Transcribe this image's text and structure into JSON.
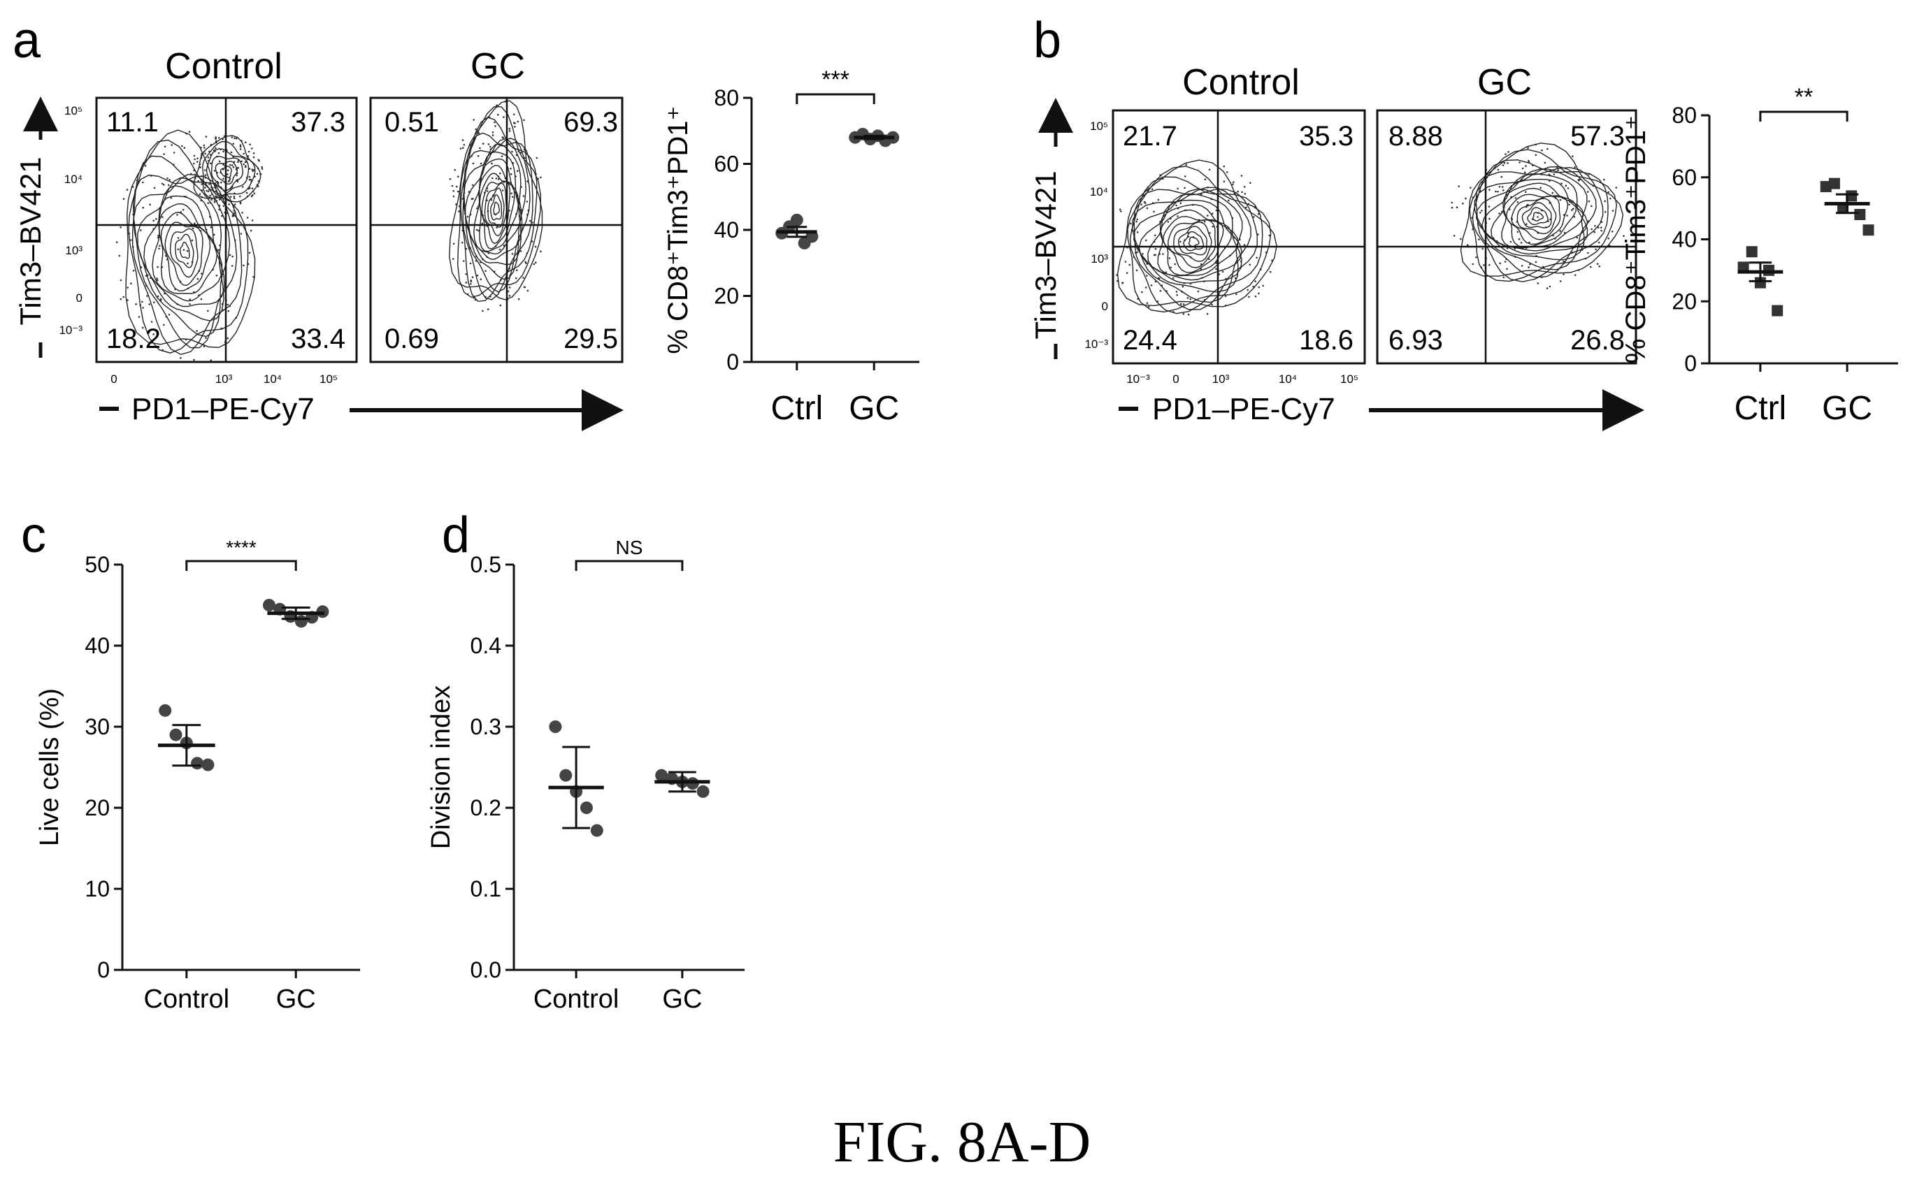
{
  "figure": {
    "caption": "FIG. 8A-D"
  },
  "panels": {
    "a": {
      "letter": "a",
      "flow": {
        "ylabel": "Tim3–BV421",
        "xlabel": "PD1–PE-Cy7",
        "plots": [
          {
            "title": "Control",
            "quadrants": {
              "ul": "11.1",
              "ur": "37.3",
              "ll": "18.2",
              "lr": "33.4"
            }
          },
          {
            "title": "GC",
            "quadrants": {
              "ul": "0.51",
              "ur": "69.3",
              "ll": "0.69",
              "lr": "29.5"
            }
          }
        ],
        "y_ticks": [
          "10⁵",
          "10⁴",
          "10³",
          "0",
          "10⁻³"
        ],
        "x_ticks": [
          "0",
          "10³",
          "10⁴",
          "10⁵"
        ]
      }
    },
    "b": {
      "letter": "b",
      "flow": {
        "ylabel": "Tim3–BV421",
        "xlabel": "PD1–PE-Cy7",
        "plots": [
          {
            "title": "Control",
            "quadrants": {
              "ul": "21.7",
              "ur": "35.3",
              "ll": "24.4",
              "lr": "18.6"
            }
          },
          {
            "title": "GC",
            "quadrants": {
              "ul": "8.88",
              "ur": "57.3",
              "ll": "6.93",
              "lr": "26.8"
            }
          }
        ],
        "y_ticks": [
          "10⁵",
          "10⁴",
          "10³",
          "0",
          "10⁻³"
        ],
        "x_ticks": [
          "10⁻³",
          "0",
          "10³",
          "10⁴",
          "10⁵"
        ]
      }
    },
    "c": {
      "letter": "c"
    },
    "d": {
      "letter": "d"
    }
  },
  "chart_data": [
    {
      "id": "a-scatter",
      "type": "scatter",
      "ylabel": "% CD8⁺Tim3⁺PD1⁺",
      "categories": [
        "Ctrl",
        "GC"
      ],
      "ylim": [
        0,
        80
      ],
      "yticks": [
        0,
        20,
        40,
        60,
        80
      ],
      "significance": "***",
      "marker": "circle",
      "series": [
        {
          "points": [
            39,
            41,
            43,
            36,
            38
          ],
          "mean": 39.4,
          "error": 1.5
        },
        {
          "points": [
            68,
            69,
            67.5,
            68.5,
            67,
            68
          ],
          "mean": 68,
          "error": 0.5
        }
      ]
    },
    {
      "id": "b-scatter",
      "type": "scatter",
      "ylabel": "% CD8⁺Tim3⁺PD1⁺",
      "categories": [
        "Ctrl",
        "GC"
      ],
      "ylim": [
        0,
        80
      ],
      "yticks": [
        0,
        20,
        40,
        60,
        80
      ],
      "significance": "**",
      "marker": "square",
      "series": [
        {
          "points": [
            31,
            36,
            26,
            30,
            17
          ],
          "mean": 29.5,
          "error": 3
        },
        {
          "points": [
            57,
            58,
            50,
            54,
            48,
            43
          ],
          "mean": 51.5,
          "error": 3
        }
      ]
    },
    {
      "id": "c-scatter",
      "type": "scatter",
      "ylabel": "Live cells (%)",
      "categories": [
        "Control",
        "GC"
      ],
      "ylim": [
        0,
        50
      ],
      "yticks": [
        0,
        10,
        20,
        30,
        40,
        50
      ],
      "significance": "****",
      "marker": "circle",
      "series": [
        {
          "points": [
            32,
            29,
            28,
            25.5,
            25.3
          ],
          "mean": 27.7,
          "error": 2.5
        },
        {
          "points": [
            45,
            44.5,
            43.6,
            43,
            43.5,
            44.2
          ],
          "mean": 44,
          "error": 0.7
        }
      ]
    },
    {
      "id": "d-scatter",
      "type": "scatter",
      "ylabel": "Division index",
      "categories": [
        "Control",
        "GC"
      ],
      "ylim": [
        0,
        0.5
      ],
      "yticks": [
        "0.0",
        "0.1",
        "0.2",
        "0.3",
        "0.4",
        "0.5"
      ],
      "significance": "NS",
      "marker": "circle",
      "series": [
        {
          "points": [
            0.3,
            0.24,
            0.22,
            0.2,
            0.172
          ],
          "mean": 0.225,
          "error": 0.05
        },
        {
          "points": [
            0.24,
            0.236,
            0.232,
            0.23,
            0.22
          ],
          "mean": 0.232,
          "error": 0.012
        }
      ]
    }
  ]
}
